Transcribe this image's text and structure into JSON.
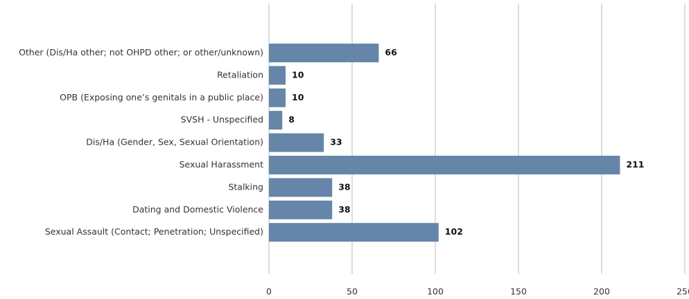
{
  "chart_data": {
    "type": "barh",
    "categories": [
      "Other (Dis/Ha other; not OHPD other; or other/unknown)",
      "Retaliation",
      "OPB (Exposing one’s genitals in a public place)",
      "SVSH - Unspecified",
      "Dis/Ha (Gender, Sex, Sexual Orientation)",
      "Sexual Harassment",
      "Stalking",
      "Dating and Domestic Violence",
      "Sexual Assault (Contact; Penetration; Unspecified)"
    ],
    "values": [
      66,
      10,
      10,
      8,
      33,
      211,
      38,
      38,
      102
    ],
    "color": "#6586a8",
    "xlim": [
      0,
      250
    ],
    "xticks": [
      0,
      50,
      100,
      150,
      200,
      250
    ],
    "grid": true
  }
}
